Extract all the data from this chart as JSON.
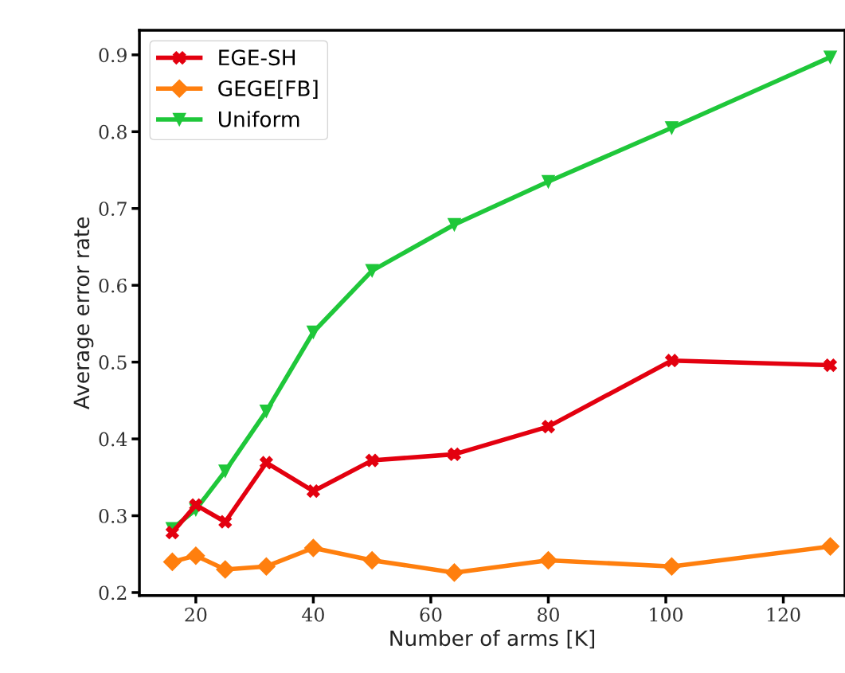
{
  "chart_data": {
    "type": "line",
    "xlabel": "Number of arms [K]",
    "ylabel": "Average error rate",
    "x": [
      16,
      20,
      25,
      32,
      40,
      50,
      64,
      80,
      101,
      128
    ],
    "series": [
      {
        "name": "EGE-SH",
        "color": "#e3000f",
        "marker": "cross",
        "values": [
          0.278,
          0.314,
          0.292,
          0.369,
          0.332,
          0.372,
          0.38,
          0.416,
          0.502,
          0.496
        ]
      },
      {
        "name": "GEGE[FB]",
        "color": "#ff7f0e",
        "marker": "diamond",
        "values": [
          0.24,
          0.248,
          0.23,
          0.234,
          0.258,
          0.242,
          0.226,
          0.242,
          0.234,
          0.26
        ]
      },
      {
        "name": "Uniform",
        "color": "#1fc73a",
        "marker": "triangle",
        "values": [
          0.283,
          0.308,
          0.358,
          0.436,
          0.539,
          0.619,
          0.679,
          0.735,
          0.805,
          0.897
        ]
      }
    ],
    "xlim": [
      10.4,
      130.5
    ],
    "xticks": [
      20,
      40,
      60,
      80,
      100,
      120
    ],
    "ylim": [
      0.196,
      0.932
    ],
    "yticks": [
      0.2,
      0.3,
      0.4,
      0.5,
      0.6,
      0.7,
      0.8,
      0.9
    ],
    "grid": false,
    "legend": "top left",
    "line_style": "solid"
  }
}
